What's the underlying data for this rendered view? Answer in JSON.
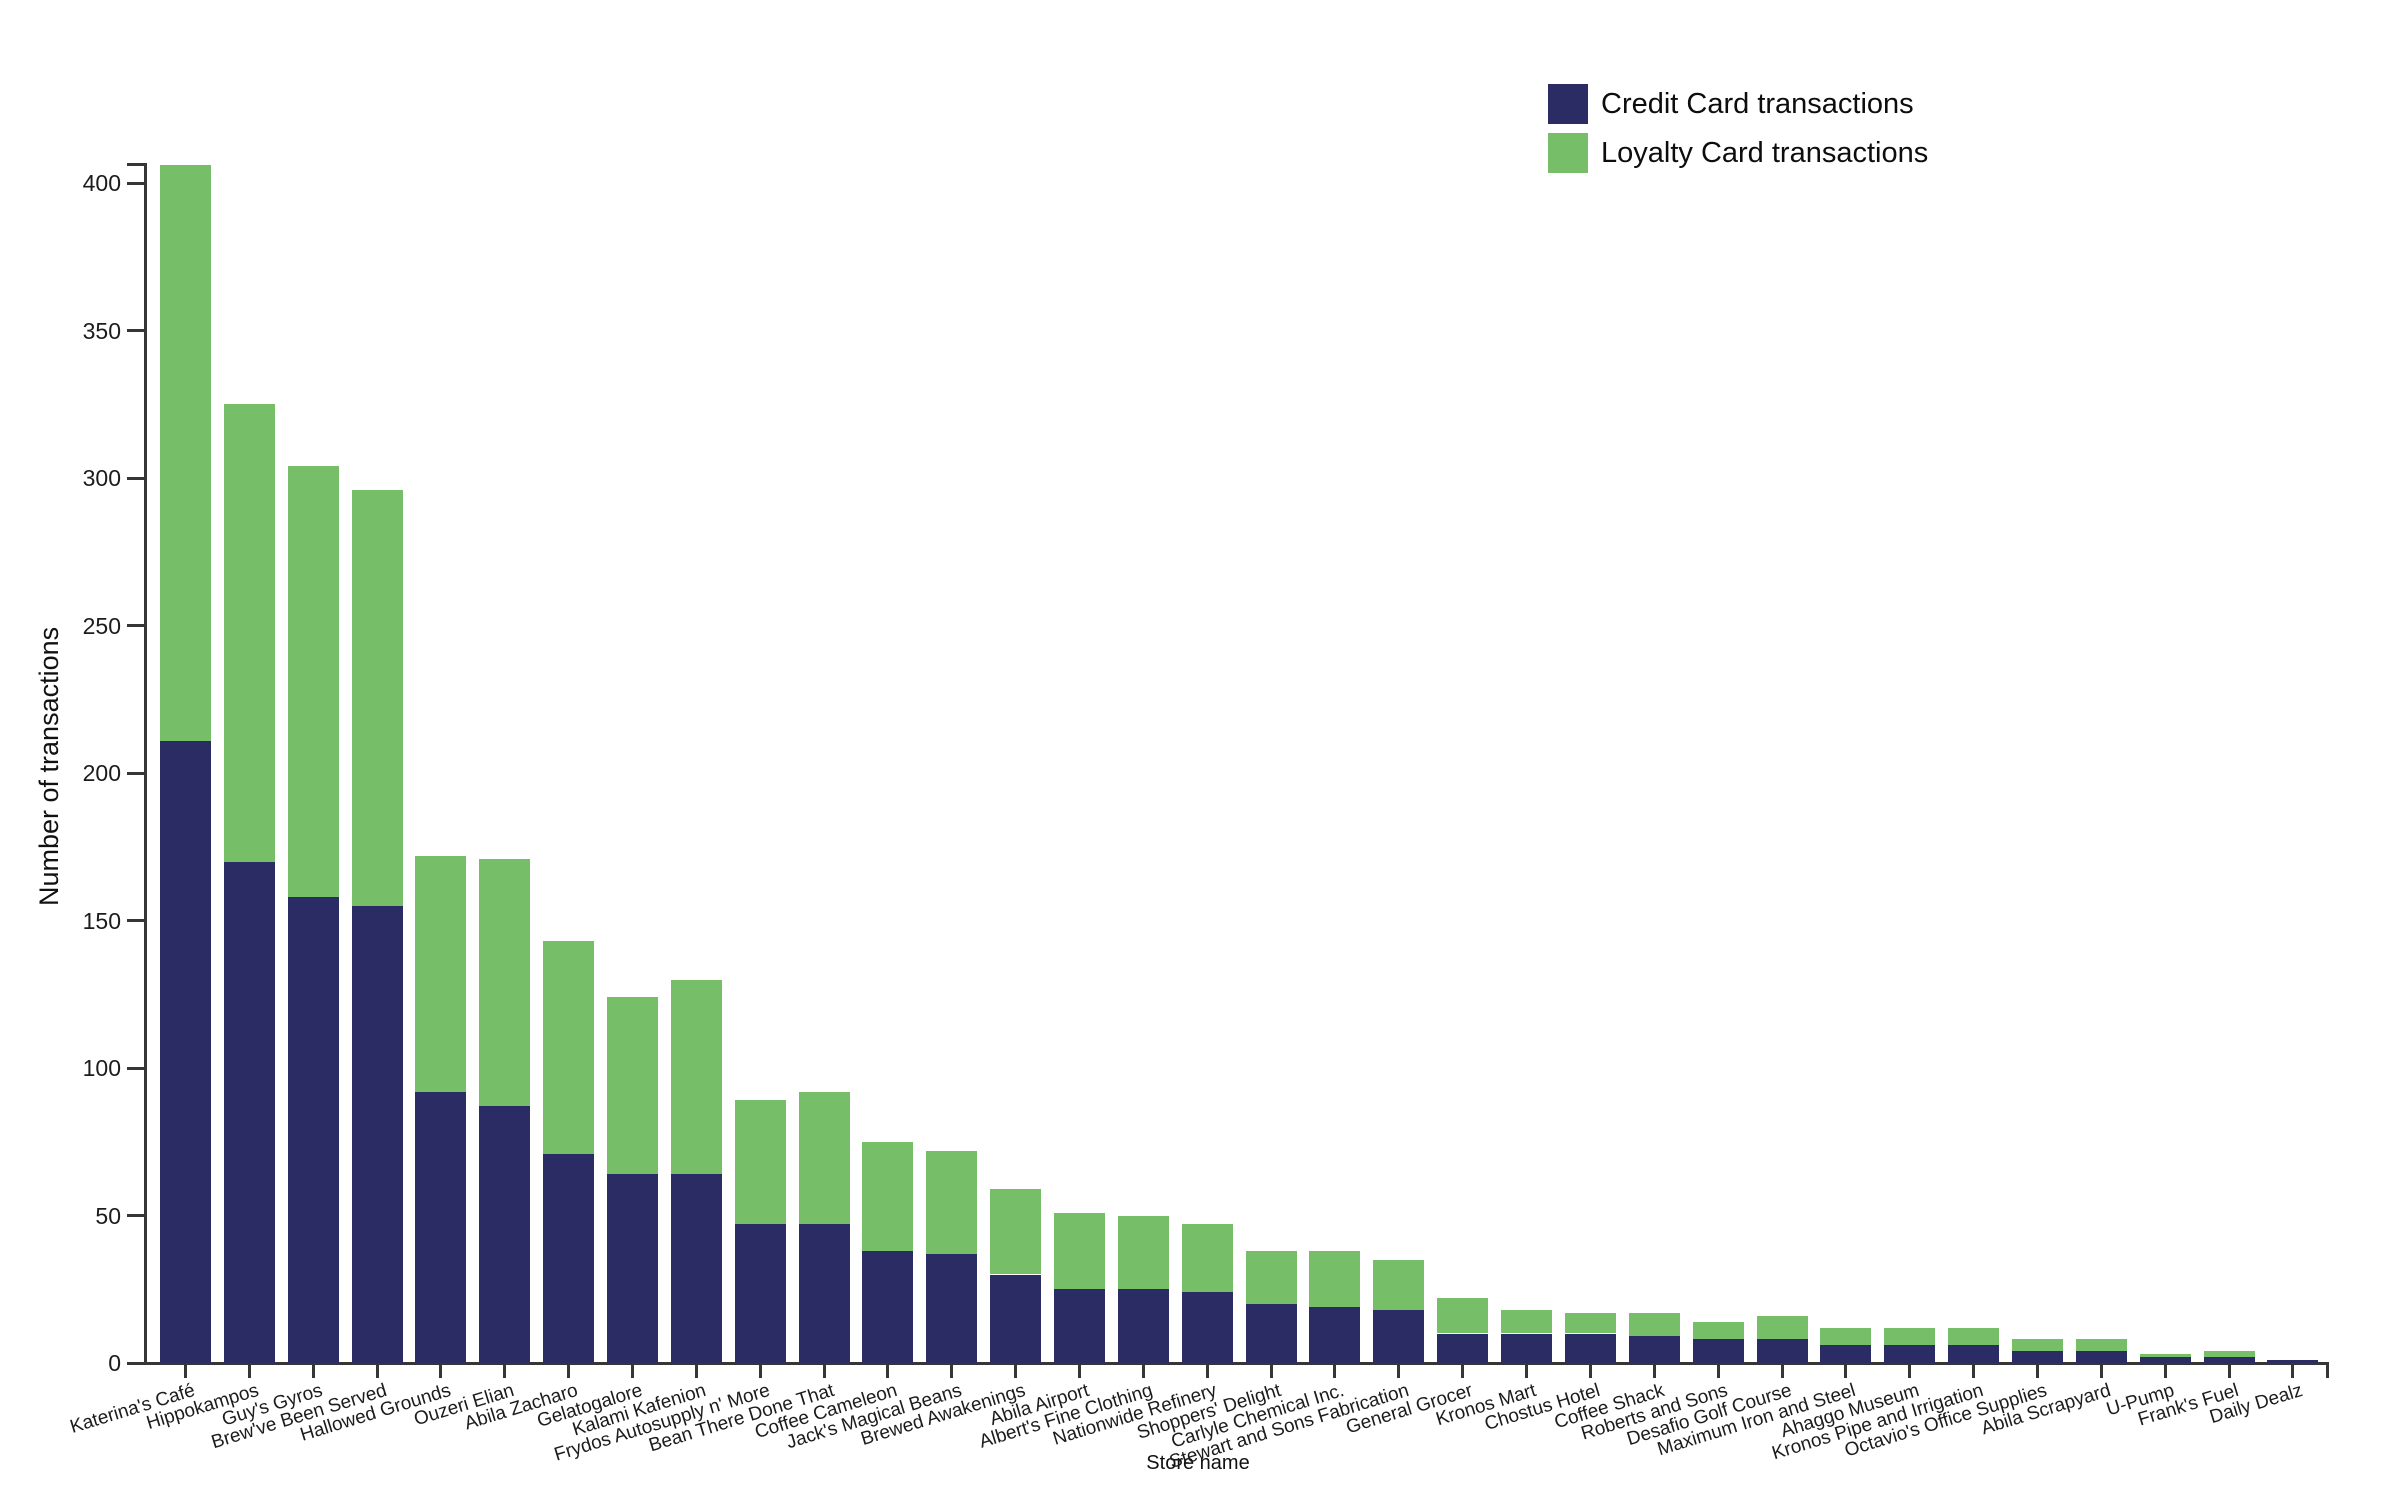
{
  "background": "#ffffff",
  "legend": {
    "position": "top-right",
    "entries": [
      {
        "label": "Credit Card transactions",
        "color": "#2b2c63"
      },
      {
        "label": "Loyalty Card transactions",
        "color": "#76bf68"
      }
    ]
  },
  "chart_data": {
    "type": "bar",
    "stacked": true,
    "title": "",
    "xlabel": "Store name",
    "ylabel": "Number of transactions",
    "ylim": [
      0,
      400
    ],
    "yticks": [
      0,
      50,
      100,
      150,
      200,
      250,
      300,
      350,
      400
    ],
    "grid": false,
    "legend_position": "top-right",
    "categories": [
      "Katerina's Café",
      "Hippokampos",
      "Guy's Gyros",
      "Brew've Been Served",
      "Hallowed Grounds",
      "Ouzeri Elian",
      "Abila Zacharo",
      "Gelatogalore",
      "Kalami Kafenion",
      "Frydos Autosupply n' More",
      "Bean There Done That",
      "Coffee Cameleon",
      "Jack's Magical Beans",
      "Brewed Awakenings",
      "Abila Airport",
      "Albert's Fine Clothing",
      "Nationwide Refinery",
      "Shoppers' Delight",
      "Carlyle Chemical Inc.",
      "Stewart and Sons Fabrication",
      "General Grocer",
      "Kronos Mart",
      "Chostus Hotel",
      "Coffee Shack",
      "Roberts and Sons",
      "Desafio Golf Course",
      "Maximum Iron and Steel",
      "Ahaggo Museum",
      "Kronos Pipe and Irrigation",
      "Octavio's Office Supplies",
      "Abila Scrapyard",
      "U-Pump",
      "Frank's Fuel",
      "Daily Dealz"
    ],
    "series": [
      {
        "name": "Credit Card transactions",
        "color": "#2b2c63",
        "values": [
          211,
          170,
          158,
          155,
          92,
          87,
          71,
          64,
          64,
          47,
          47,
          38,
          37,
          30,
          25,
          25,
          24,
          20,
          19,
          18,
          10,
          10,
          10,
          9,
          8,
          8,
          6,
          6,
          6,
          4,
          4,
          2,
          2,
          1
        ]
      },
      {
        "name": "Loyalty Card transactions",
        "color": "#76bf68",
        "values": [
          195,
          155,
          146,
          141,
          80,
          84,
          72,
          60,
          66,
          42,
          45,
          37,
          35,
          29,
          26,
          25,
          23,
          18,
          19,
          17,
          12,
          8,
          7,
          8,
          6,
          8,
          6,
          6,
          6,
          4,
          4,
          1,
          2,
          0
        ]
      }
    ]
  }
}
